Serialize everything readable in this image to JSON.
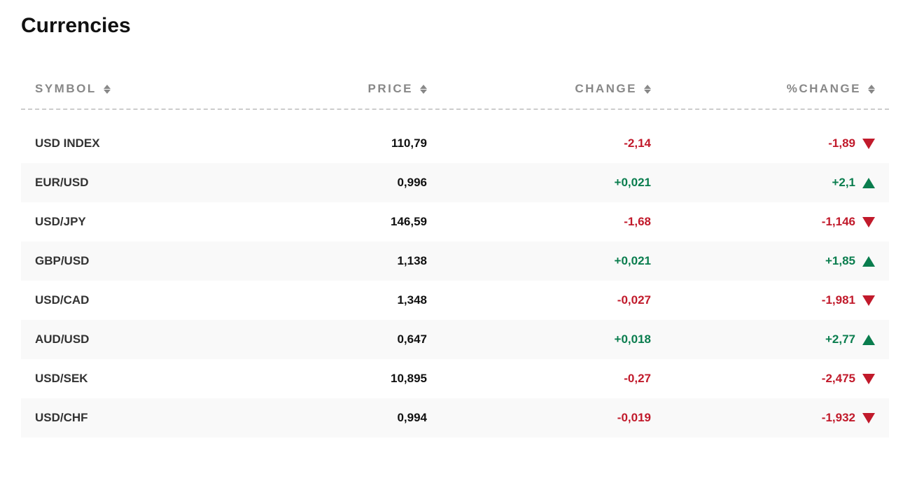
{
  "title": "Currencies",
  "colors": {
    "positive": "#0a7d4e",
    "negative": "#c11a2b",
    "header_text": "#888888",
    "row_alt_bg": "#f9f9f9",
    "symbol_text": "#333333",
    "price_text": "#111111",
    "background": "#ffffff",
    "divider": "#cccccc"
  },
  "typography": {
    "title_fontsize": 30,
    "header_fontsize": 17,
    "header_letter_spacing": 2.5,
    "cell_fontsize": 17
  },
  "table": {
    "columns": [
      {
        "key": "symbol",
        "label": "SYMBOL",
        "sortable": true,
        "align": "left"
      },
      {
        "key": "price",
        "label": "PRICE",
        "sortable": true,
        "align": "right"
      },
      {
        "key": "change",
        "label": "CHANGE",
        "sortable": true,
        "align": "right"
      },
      {
        "key": "pct",
        "label": "%CHANGE",
        "sortable": true,
        "align": "right"
      }
    ],
    "rows": [
      {
        "symbol": "USD INDEX",
        "price": "110,79",
        "change": "-2,14",
        "pct": "-1,89",
        "direction": "down"
      },
      {
        "symbol": "EUR/USD",
        "price": "0,996",
        "change": "+0,021",
        "pct": "+2,1",
        "direction": "up"
      },
      {
        "symbol": "USD/JPY",
        "price": "146,59",
        "change": "-1,68",
        "pct": "-1,146",
        "direction": "down"
      },
      {
        "symbol": "GBP/USD",
        "price": "1,138",
        "change": "+0,021",
        "pct": "+1,85",
        "direction": "up"
      },
      {
        "symbol": "USD/CAD",
        "price": "1,348",
        "change": "-0,027",
        "pct": "-1,981",
        "direction": "down"
      },
      {
        "symbol": "AUD/USD",
        "price": "0,647",
        "change": "+0,018",
        "pct": "+2,77",
        "direction": "up"
      },
      {
        "symbol": "USD/SEK",
        "price": "10,895",
        "change": "-0,27",
        "pct": "-2,475",
        "direction": "down"
      },
      {
        "symbol": "USD/CHF",
        "price": "0,994",
        "change": "-0,019",
        "pct": "-1,932",
        "direction": "down"
      }
    ]
  }
}
